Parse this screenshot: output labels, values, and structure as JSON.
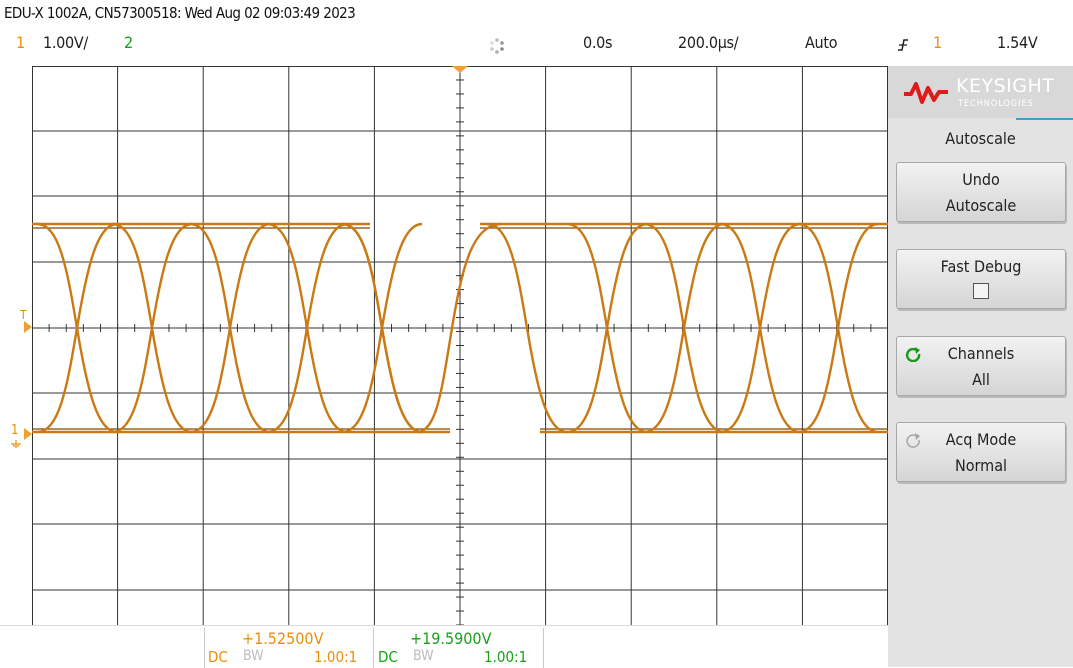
{
  "header": {
    "title": "EDU-X 1002A, CN57300518: Wed Aug 02 09:03:49 2023",
    "ch1_label": "1",
    "ch1_scale": "1.00V/",
    "ch2_label": "2",
    "run_icon": "spinner-icon",
    "time_delay": "0.0s",
    "time_scale": "200.0µs/",
    "trigger_mode": "Auto",
    "trigger_slope_icon": "rising-edge-icon",
    "trigger_source": "1",
    "trigger_level": "1.54V"
  },
  "screen": {
    "markers": {
      "trigger_level_label": "T",
      "ch1_ground_label": "1"
    },
    "colors": {
      "ch1": "#d88a1c",
      "ch2": "#1aa01a",
      "grid": "#333333",
      "trigger": "#f0a030"
    }
  },
  "softkeys": {
    "logo": {
      "brand": "KEYSIGHT",
      "sub": "TECHNOLOGIES"
    },
    "menu_title": "Autoscale",
    "undo": {
      "line1": "Undo",
      "line2": "Autoscale"
    },
    "fast_debug": {
      "label": "Fast Debug",
      "checked": false
    },
    "channels": {
      "line1": "Channels",
      "line2": "All"
    },
    "acq_mode": {
      "line1": "Acq Mode",
      "line2": "Normal"
    }
  },
  "bottom": {
    "ch1": {
      "value": "+1.52500V",
      "coupling": "DC",
      "bw": "BW",
      "probe": "1.00:1"
    },
    "ch2": {
      "value": "+19.5900V",
      "coupling": "DC",
      "bw": "BW",
      "probe": "1.00:1"
    }
  }
}
